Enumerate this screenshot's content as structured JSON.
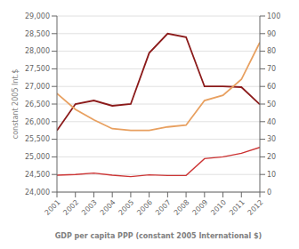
{
  "chart_data": {
    "type": "line",
    "xlabel": "GDP per capita PPP (constant 2005 International $)",
    "ylabel": "constant 2005 Int.$",
    "x": [
      2001,
      2002,
      2003,
      2004,
      2005,
      2006,
      2007,
      2008,
      2009,
      2010,
      2011,
      2012
    ],
    "series": [
      {
        "color": "#8B1A1A",
        "values": [
          25750,
          26500,
          26600,
          26450,
          26500,
          27950,
          28500,
          28400,
          27000,
          27000,
          26980,
          26490
        ]
      },
      {
        "color": "#E8A060",
        "values": [
          26800,
          26350,
          26050,
          25800,
          25750,
          25750,
          25850,
          25900,
          26600,
          26750,
          27200,
          28250
        ]
      },
      {
        "color": "#CC3333",
        "values": [
          24480,
          24500,
          24540,
          24480,
          24440,
          24490,
          24470,
          24470,
          24950,
          25000,
          25100,
          25270
        ]
      }
    ],
    "xlim": [
      2001,
      2012
    ],
    "xticks": [
      2001,
      2002,
      2003,
      2004,
      2005,
      2006,
      2007,
      2008,
      2009,
      2010,
      2011,
      2012
    ],
    "ylim": [
      24000,
      29000
    ],
    "yticks": [
      {
        "value": 24000,
        "label": "24,000"
      },
      {
        "value": 24500,
        "label": "24,500"
      },
      {
        "value": 25000,
        "label": "25,000"
      },
      {
        "value": 25500,
        "label": "25,500"
      },
      {
        "value": 26000,
        "label": "26,000"
      },
      {
        "value": 26500,
        "label": "26,500"
      },
      {
        "value": 27000,
        "label": "27,000"
      },
      {
        "value": 27500,
        "label": "27,500"
      },
      {
        "value": 28000,
        "label": "28,000"
      },
      {
        "value": 28500,
        "label": "28,500"
      },
      {
        "value": 29000,
        "label": "29,000"
      }
    ],
    "y2lim": [
      0,
      100
    ],
    "y2ticks": [
      0,
      10,
      20,
      30,
      40,
      50,
      60,
      70,
      80,
      90,
      100
    ],
    "grid": true
  }
}
